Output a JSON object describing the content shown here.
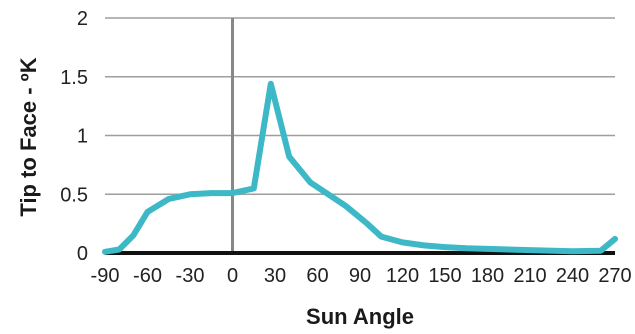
{
  "chart_data": {
    "type": "line",
    "title": "",
    "xlabel": "Sun Angle",
    "ylabel": "Tip to Face  - ºK",
    "xlim": [
      -90,
      270
    ],
    "ylim": [
      0,
      2
    ],
    "x_ticks": [
      -90,
      -60,
      -30,
      0,
      30,
      60,
      90,
      120,
      150,
      180,
      210,
      240,
      270
    ],
    "x_tick_labels": [
      "-90",
      "-60",
      "-30",
      "0",
      "30",
      "60",
      "90",
      "120",
      "150",
      "180",
      "210",
      "240",
      "270"
    ],
    "y_ticks": [
      0,
      0.5,
      1,
      1.5,
      2
    ],
    "y_tick_labels": [
      "0",
      "0.5",
      "1",
      "1.5",
      "2"
    ],
    "grid": {
      "horizontal": true,
      "vertical": false
    },
    "legend": "none",
    "colors": {
      "series": "#3db8c6",
      "grid": "#9e9e9e",
      "zero_line": "#888888",
      "baseline": "#111111"
    },
    "series": [
      {
        "values": [
          {
            "x": -90,
            "y": 0.01
          },
          {
            "x": -80,
            "y": 0.03
          },
          {
            "x": -70,
            "y": 0.15
          },
          {
            "x": -60,
            "y": 0.35
          },
          {
            "x": -45,
            "y": 0.46
          },
          {
            "x": -30,
            "y": 0.5
          },
          {
            "x": -15,
            "y": 0.51
          },
          {
            "x": 0,
            "y": 0.51
          },
          {
            "x": 15,
            "y": 0.55
          },
          {
            "x": 27,
            "y": 1.44
          },
          {
            "x": 40,
            "y": 0.82
          },
          {
            "x": 55,
            "y": 0.6
          },
          {
            "x": 65,
            "y": 0.52
          },
          {
            "x": 80,
            "y": 0.4
          },
          {
            "x": 95,
            "y": 0.25
          },
          {
            "x": 105,
            "y": 0.14
          },
          {
            "x": 120,
            "y": 0.09
          },
          {
            "x": 135,
            "y": 0.065
          },
          {
            "x": 150,
            "y": 0.05
          },
          {
            "x": 165,
            "y": 0.04
          },
          {
            "x": 180,
            "y": 0.035
          },
          {
            "x": 210,
            "y": 0.025
          },
          {
            "x": 240,
            "y": 0.015
          },
          {
            "x": 260,
            "y": 0.02
          },
          {
            "x": 270,
            "y": 0.12
          }
        ]
      }
    ]
  }
}
